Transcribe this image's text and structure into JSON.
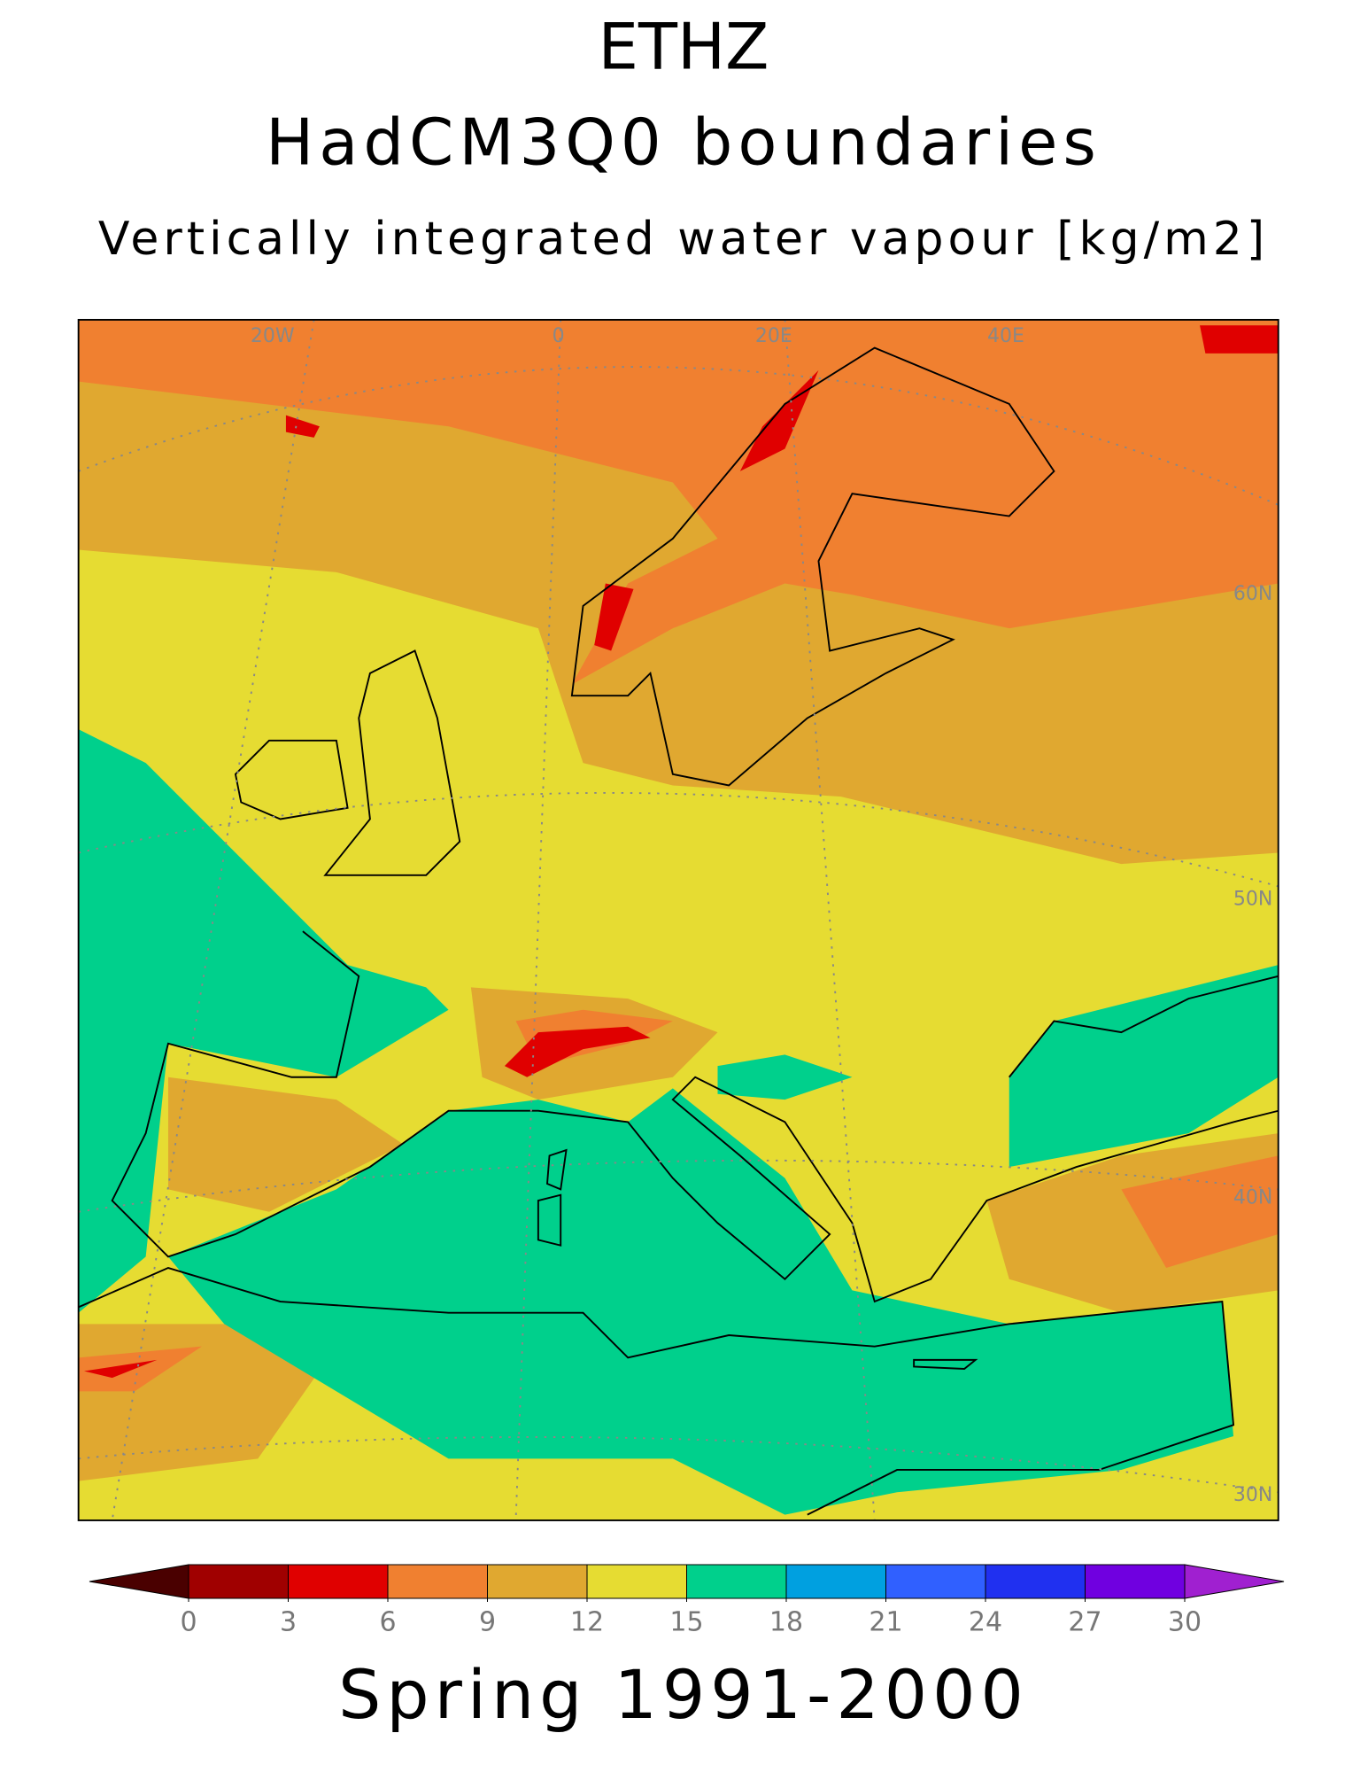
{
  "title": [
    "ETHZ",
    "HadCM3Q0 boundaries"
  ],
  "subtitle": "Vertically integrated water vapour [kg/m2]",
  "map": {
    "lon_labels": [
      "20W",
      "0",
      "20E",
      "40E"
    ],
    "lat_labels": [
      "60N",
      "50N",
      "40N",
      "30N"
    ]
  },
  "colorbar": {
    "ticks": [
      0,
      3,
      6,
      9,
      12,
      15,
      18,
      21,
      24,
      27,
      30
    ],
    "colors": [
      "#a00000",
      "#e00000",
      "#f08030",
      "#e0a830",
      "#e6dc32",
      "#00d08c",
      "#00a0e0",
      "#3060ff",
      "#2030f0",
      "#7000e0"
    ],
    "under_color": "#4a0000",
    "over_color": "#a020d0"
  },
  "footer": "Spring 1991-2000"
}
